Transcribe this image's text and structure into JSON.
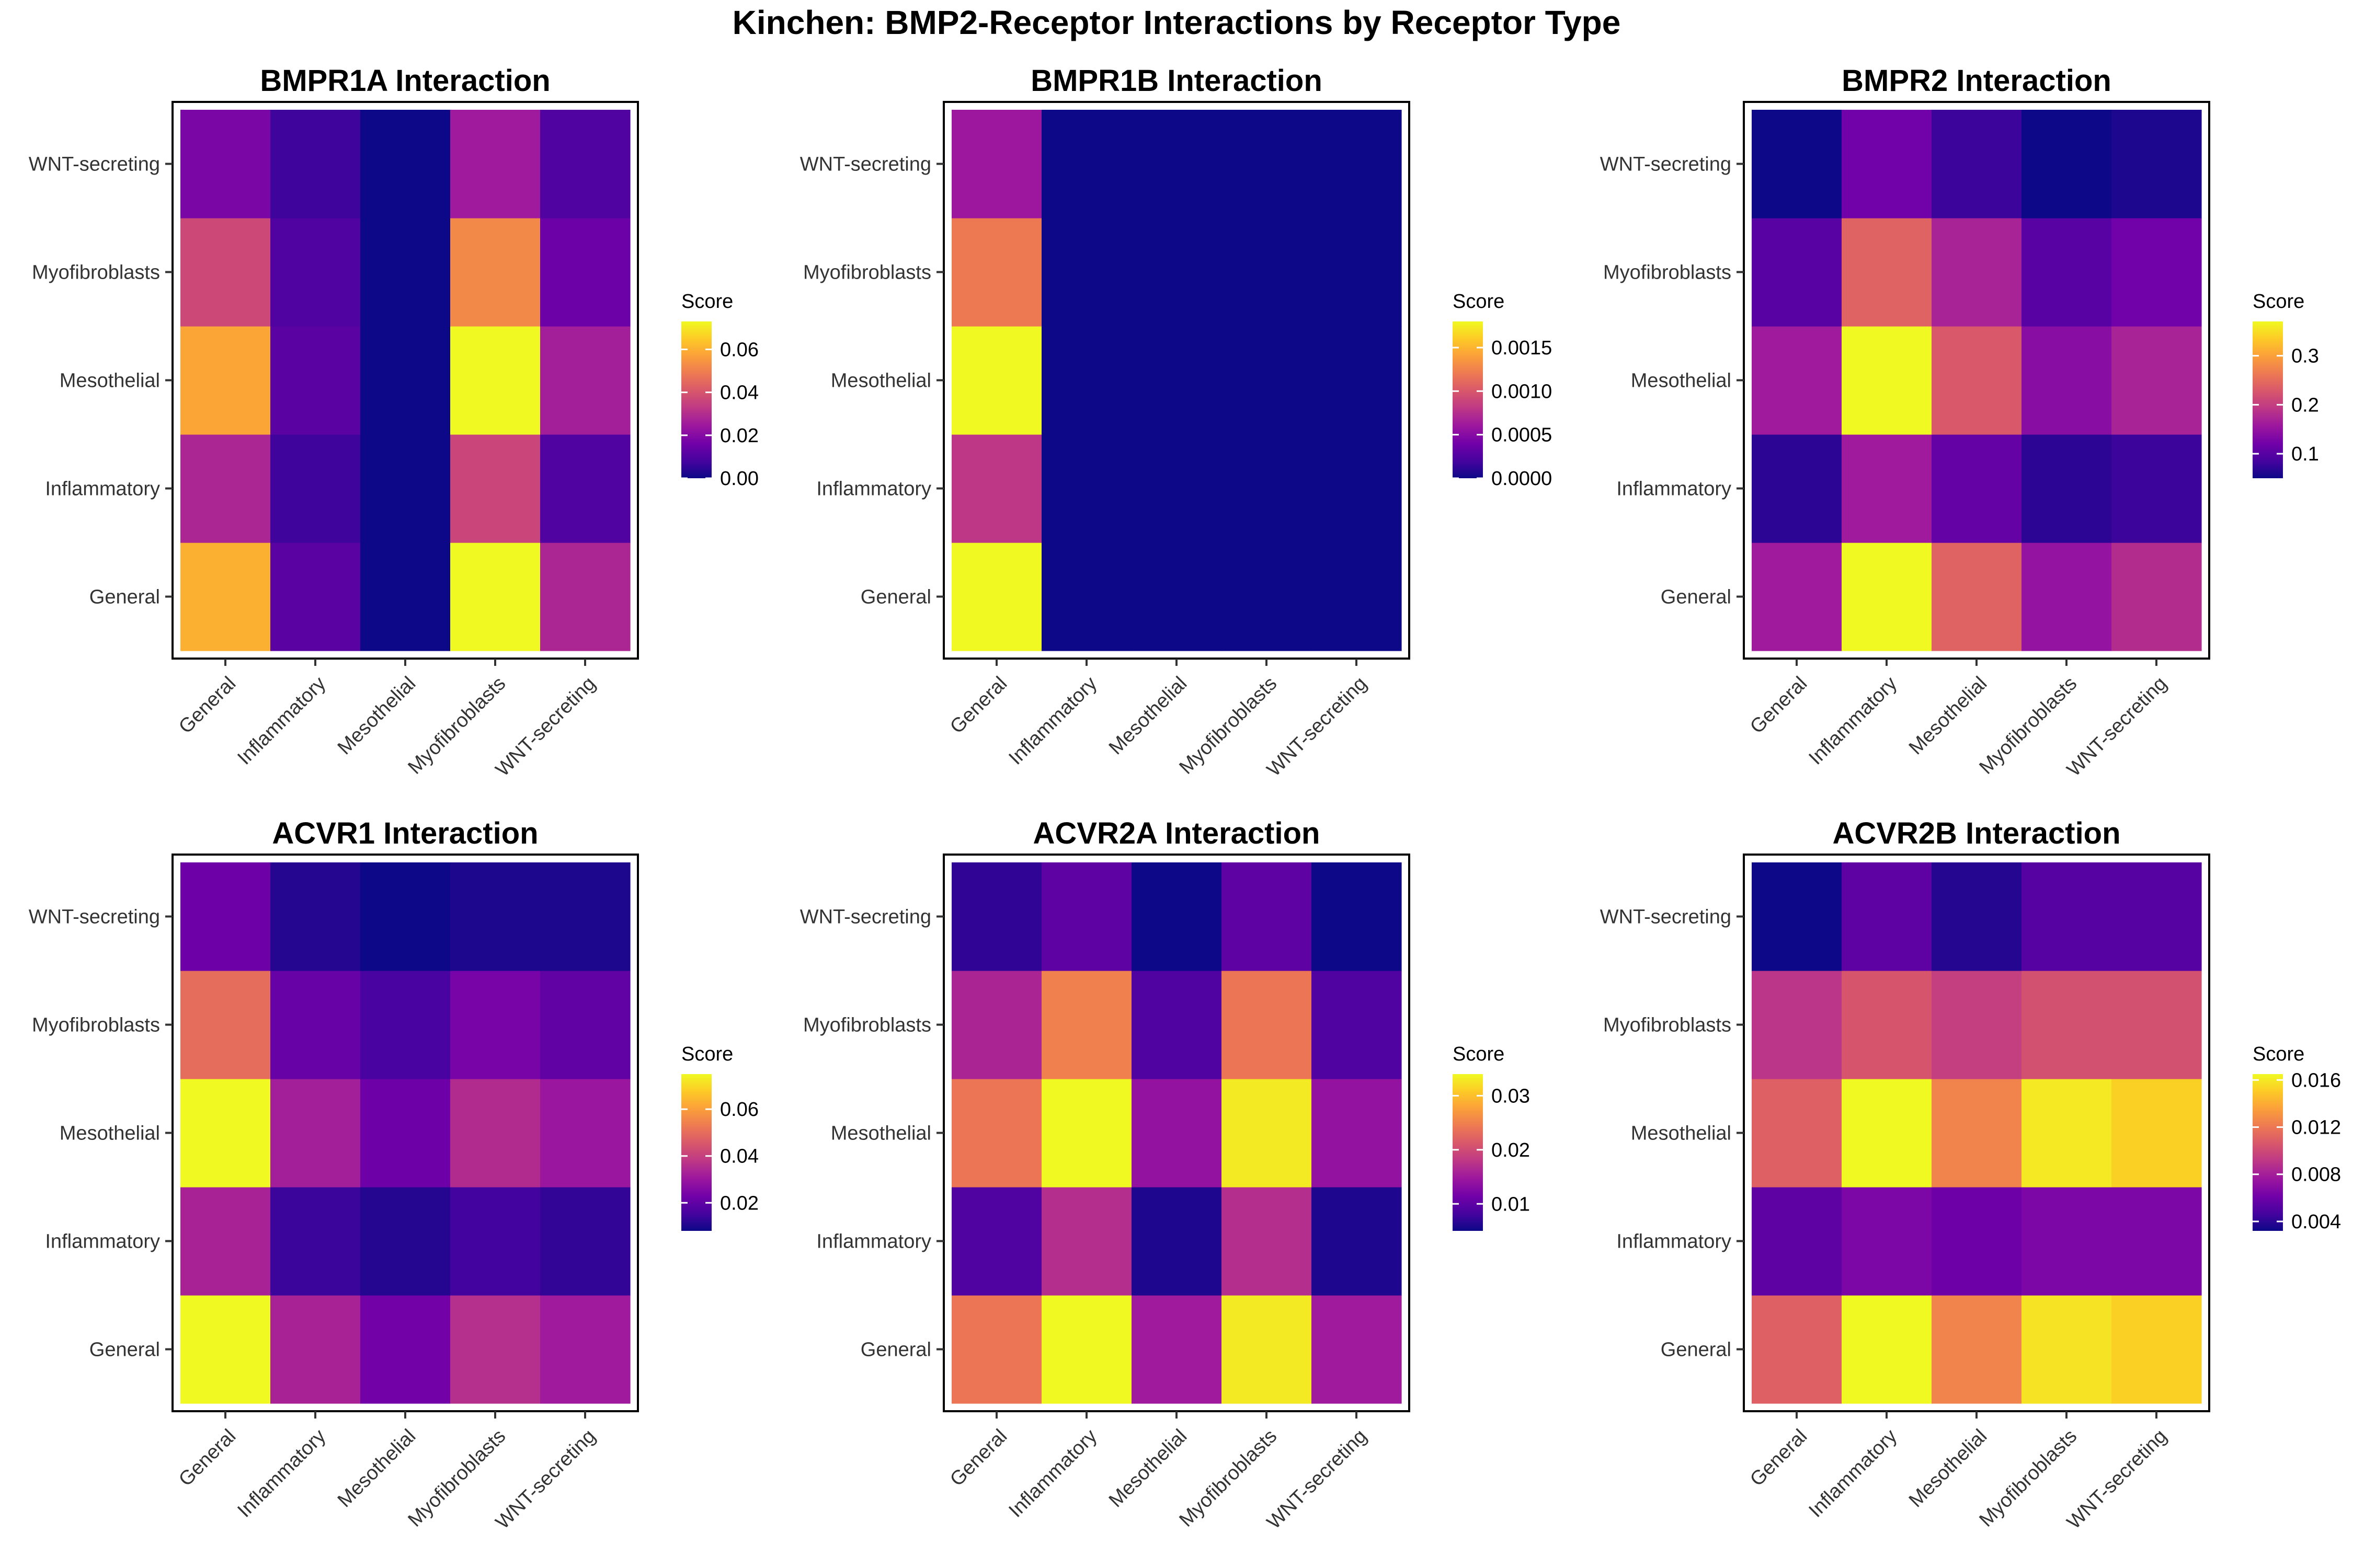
{
  "figure": {
    "title": "Kinchen: BMP2-Receptor Interactions by Receptor Type",
    "colorscale": [
      "#0d0887",
      "#46039f",
      "#7201a8",
      "#9c179e",
      "#bd3786",
      "#d8576b",
      "#ed7953",
      "#fb9f3a",
      "#fdca26",
      "#f0f921"
    ]
  },
  "chart_data": [
    {
      "type": "heatmap",
      "title": "BMPR1A Interaction",
      "x": [
        "General",
        "Inflammatory",
        "Mesothelial",
        "Myofibroblasts",
        "WNT-secreting"
      ],
      "y": [
        "General",
        "Inflammatory",
        "Mesothelial",
        "Myofibroblasts",
        "WNT-secreting"
      ],
      "z": [
        [
          0.06,
          0.012,
          0.0,
          0.073,
          0.028
        ],
        [
          0.028,
          0.007,
          0.0,
          0.036,
          0.01
        ],
        [
          0.058,
          0.012,
          0.0,
          0.073,
          0.026
        ],
        [
          0.037,
          0.01,
          0.0,
          0.052,
          0.015
        ],
        [
          0.018,
          0.007,
          0.0,
          0.025,
          0.01
        ]
      ],
      "legend": {
        "title": "Score",
        "range": [
          0,
          0.073
        ],
        "ticks": [
          0.0,
          0.02,
          0.04,
          0.06
        ],
        "tick_labels": [
          "0.00",
          "0.02",
          "0.04",
          "0.06"
        ]
      }
    },
    {
      "type": "heatmap",
      "title": "BMPR1B Interaction",
      "x": [
        "General",
        "Inflammatory",
        "Mesothelial",
        "Myofibroblasts",
        "WNT-secreting"
      ],
      "y": [
        "General",
        "Inflammatory",
        "Mesothelial",
        "Myofibroblasts",
        "WNT-secreting"
      ],
      "z": [
        [
          0.0018,
          0,
          0,
          0,
          0
        ],
        [
          0.0008,
          0,
          0,
          0,
          0
        ],
        [
          0.0018,
          0,
          0,
          0,
          0
        ],
        [
          0.0012,
          0,
          0,
          0,
          0
        ],
        [
          0.0006,
          0,
          0,
          0,
          0
        ]
      ],
      "legend": {
        "title": "Score",
        "range": [
          0,
          0.0018
        ],
        "ticks": [
          0.0,
          0.0005,
          0.001,
          0.0015
        ],
        "tick_labels": [
          "0.0000",
          "0.0005",
          "0.0010",
          "0.0015"
        ]
      }
    },
    {
      "type": "heatmap",
      "title": "BMPR2 Interaction",
      "x": [
        "General",
        "Inflammatory",
        "Mesothelial",
        "Myofibroblasts",
        "WNT-secreting"
      ],
      "y": [
        "General",
        "Inflammatory",
        "Mesothelial",
        "Myofibroblasts",
        "WNT-secreting"
      ],
      "z": [
        [
          0.16,
          0.37,
          0.24,
          0.15,
          0.18
        ],
        [
          0.07,
          0.16,
          0.11,
          0.07,
          0.08
        ],
        [
          0.16,
          0.37,
          0.23,
          0.14,
          0.17
        ],
        [
          0.1,
          0.24,
          0.17,
          0.1,
          0.12
        ],
        [
          0.05,
          0.12,
          0.08,
          0.05,
          0.06
        ]
      ],
      "legend": {
        "title": "Score",
        "range": [
          0.05,
          0.37
        ],
        "ticks": [
          0.1,
          0.2,
          0.3
        ],
        "tick_labels": [
          "0.1",
          "0.2",
          "0.3"
        ]
      }
    },
    {
      "type": "heatmap",
      "title": "ACVR1 Interaction",
      "x": [
        "General",
        "Inflammatory",
        "Mesothelial",
        "Myofibroblasts",
        "WNT-secreting"
      ],
      "y": [
        "General",
        "Inflammatory",
        "Mesothelial",
        "Myofibroblasts",
        "WNT-secreting"
      ],
      "z": [
        [
          0.075,
          0.033,
          0.023,
          0.036,
          0.031
        ],
        [
          0.033,
          0.014,
          0.011,
          0.015,
          0.013
        ],
        [
          0.075,
          0.032,
          0.022,
          0.035,
          0.03
        ],
        [
          0.05,
          0.021,
          0.016,
          0.024,
          0.02
        ],
        [
          0.022,
          0.011,
          0.008,
          0.01,
          0.01
        ]
      ],
      "legend": {
        "title": "Score",
        "range": [
          0.008,
          0.075
        ],
        "ticks": [
          0.02,
          0.04,
          0.06
        ],
        "tick_labels": [
          "0.02",
          "0.04",
          "0.06"
        ]
      }
    },
    {
      "type": "heatmap",
      "title": "ACVR2A Interaction",
      "x": [
        "General",
        "Inflammatory",
        "Mesothelial",
        "Myofibroblasts",
        "WNT-secreting"
      ],
      "y": [
        "General",
        "Inflammatory",
        "Mesothelial",
        "Myofibroblasts",
        "WNT-secreting"
      ],
      "z": [
        [
          0.024,
          0.034,
          0.015,
          0.033,
          0.015
        ],
        [
          0.009,
          0.017,
          0.006,
          0.017,
          0.006
        ],
        [
          0.024,
          0.034,
          0.014,
          0.033,
          0.014
        ],
        [
          0.016,
          0.025,
          0.009,
          0.024,
          0.009
        ],
        [
          0.007,
          0.01,
          0.005,
          0.01,
          0.005
        ]
      ],
      "legend": {
        "title": "Score",
        "range": [
          0.005,
          0.034
        ],
        "ticks": [
          0.01,
          0.02,
          0.03
        ],
        "tick_labels": [
          "0.01",
          "0.02",
          "0.03"
        ]
      }
    },
    {
      "type": "heatmap",
      "title": "ACVR2B Interaction",
      "x": [
        "General",
        "Inflammatory",
        "Mesothelial",
        "Myofibroblasts",
        "WNT-secreting"
      ],
      "y": [
        "General",
        "Inflammatory",
        "Mesothelial",
        "Myofibroblasts",
        "WNT-secreting"
      ],
      "z": [
        [
          0.011,
          0.0165,
          0.0125,
          0.0158,
          0.0152
        ],
        [
          0.0055,
          0.0065,
          0.006,
          0.0065,
          0.0065
        ],
        [
          0.011,
          0.0165,
          0.0125,
          0.016,
          0.0152
        ],
        [
          0.009,
          0.0105,
          0.0095,
          0.0103,
          0.0103
        ],
        [
          0.0032,
          0.0055,
          0.0038,
          0.0052,
          0.0052
        ]
      ],
      "legend": {
        "title": "Score",
        "range": [
          0.0032,
          0.0165
        ],
        "ticks": [
          0.004,
          0.008,
          0.012,
          0.016
        ],
        "tick_labels": [
          "0.004",
          "0.008",
          "0.012",
          "0.016"
        ]
      }
    }
  ]
}
